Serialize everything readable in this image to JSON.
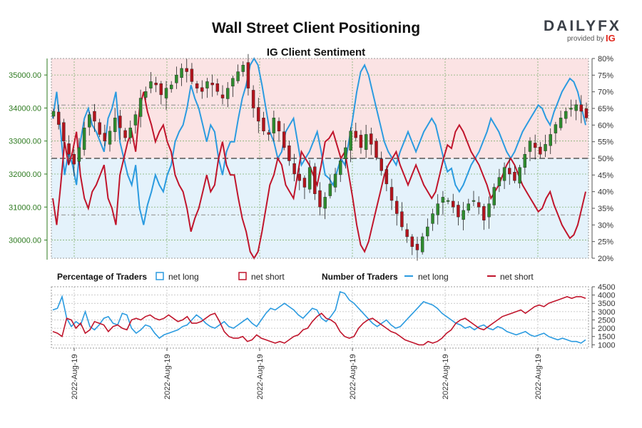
{
  "title": "Wall Street Client Positioning",
  "subtitle": "IG Client Sentiment",
  "brand": {
    "name": "DAILYFX",
    "tagline": "provided by",
    "partner": "IG"
  },
  "colors": {
    "long": "#2b9be0",
    "short": "#c0152c",
    "up_candle": "#2e8b2e",
    "down_candle": "#b3141d",
    "long_zone": "#e4f2fb",
    "short_zone": "#fbe3e4",
    "left_axis": "#2d7a1f"
  },
  "legend": {
    "pct_heading": "Percentage of Traders",
    "num_heading": "Number of Traders",
    "net_long": "net long",
    "net_short": "net short"
  },
  "chart_data": [
    {
      "type": "candlestick",
      "title": "Wall Street Client Positioning",
      "subtitle": "IG Client Sentiment",
      "y_left_ticks": [
        "30000.00",
        "31000.00",
        "32000.00",
        "33000.00",
        "34000.00",
        "35000.00"
      ],
      "y_left_range": [
        29450,
        35500
      ],
      "y_right_ticks": [
        "20%",
        "25%",
        "30%",
        "35%",
        "40%",
        "45%",
        "50%",
        "55%",
        "60%",
        "65%",
        "70%",
        "75%",
        "80%"
      ],
      "y_right_range": [
        20,
        80
      ],
      "reference_levels_pct": [
        33,
        50,
        66
      ],
      "series": [
        {
          "name": "net long",
          "values": [
            62,
            70,
            58,
            45,
            52,
            48,
            42,
            55,
            62,
            65,
            60,
            58,
            55,
            52,
            62,
            65,
            70,
            55,
            50,
            45,
            42,
            48,
            35,
            30,
            36,
            40,
            45,
            42,
            40,
            45,
            48,
            55,
            58,
            60,
            65,
            72,
            68,
            65,
            60,
            55,
            60,
            58,
            50,
            45,
            52,
            55,
            55,
            62,
            68,
            72,
            78,
            80,
            78,
            72,
            65,
            58,
            55,
            50,
            52,
            58,
            60,
            62,
            55,
            48,
            50,
            52,
            55,
            58,
            52,
            45,
            44,
            42,
            46,
            50,
            48,
            55,
            62,
            70,
            76,
            78,
            75,
            70,
            65,
            60,
            55,
            52,
            50,
            48,
            52,
            55,
            58,
            55,
            52,
            55,
            58,
            60,
            62,
            60,
            55,
            50,
            46,
            47,
            42,
            40,
            42,
            45,
            48,
            50,
            52,
            55,
            58,
            62,
            60,
            58,
            55,
            52,
            50,
            52,
            55,
            58,
            60,
            62,
            64,
            66,
            65,
            62,
            60,
            64,
            67,
            70,
            72,
            74,
            73,
            70,
            65,
            60
          ]
        },
        {
          "name": "net short",
          "values": [
            38,
            30,
            42,
            55,
            48,
            52,
            58,
            45,
            38,
            35,
            40,
            42,
            45,
            48,
            38,
            35,
            30,
            45,
            50,
            55,
            58,
            52,
            65,
            70,
            64,
            60,
            55,
            58,
            60,
            55,
            52,
            45,
            42,
            40,
            35,
            28,
            32,
            35,
            40,
            45,
            40,
            42,
            50,
            55,
            48,
            45,
            45,
            38,
            32,
            28,
            22,
            20,
            22,
            28,
            35,
            42,
            45,
            50,
            48,
            42,
            40,
            38,
            45,
            52,
            50,
            48,
            45,
            42,
            48,
            55,
            56,
            58,
            54,
            50,
            52,
            45,
            38,
            30,
            24,
            22,
            25,
            30,
            35,
            40,
            45,
            48,
            50,
            52,
            48,
            45,
            42,
            45,
            48,
            45,
            42,
            40,
            38,
            40,
            45,
            50,
            54,
            53,
            58,
            60,
            58,
            55,
            52,
            50,
            48,
            45,
            42,
            38,
            40,
            42,
            45,
            48,
            50,
            48,
            45,
            42,
            40,
            38,
            36,
            34,
            35,
            38,
            40,
            36,
            33,
            30,
            28,
            26,
            27,
            30,
            35,
            40
          ]
        },
        {
          "name": "price",
          "values": [
            33900,
            33500,
            33000,
            32600,
            32300,
            32800,
            33400,
            33800,
            33600,
            33200,
            33000,
            33300,
            33700,
            33400,
            33100,
            33400,
            33800,
            34300,
            34500,
            34800,
            34700,
            34400,
            34600,
            34700,
            35000,
            35200,
            35100,
            34800,
            34600,
            34500,
            34800,
            34700,
            34500,
            34300,
            34600,
            34900,
            35100,
            35300,
            34600,
            34000,
            33600,
            33300,
            33200,
            33700,
            33300,
            32800,
            32400,
            32000,
            31800,
            31600,
            32200,
            31400,
            31000,
            31300,
            31700,
            32000,
            32400,
            32800,
            33300,
            33100,
            32800,
            33200,
            32900,
            32500,
            32100,
            31700,
            31200,
            30800,
            30400,
            30100,
            29800,
            29700,
            30100,
            30400,
            30800,
            31100,
            31300,
            31200,
            31000,
            30700,
            30900,
            31100,
            31200,
            31000,
            30600,
            31100,
            31600,
            31900,
            32200,
            32000,
            31800,
            32200,
            32600,
            33000,
            32800,
            32600,
            32900,
            33200,
            33500,
            33700,
            33900,
            34000,
            34100,
            33900,
            33700
          ]
        }
      ]
    },
    {
      "type": "line",
      "y_ticks": [
        "1000",
        "1500",
        "2000",
        "2500",
        "3000",
        "3500",
        "4000",
        "4500"
      ],
      "y_range": [
        800,
        4500
      ],
      "x_tick_labels": [
        "2022-Aug-19",
        "2022-Aug-19",
        "2022-Aug-19",
        "2022-Aug-19",
        "2022-Aug-19",
        "2022-Aug-19"
      ],
      "series": [
        {
          "name": "net long",
          "values": [
            3100,
            3200,
            3900,
            2600,
            2100,
            2400,
            2200,
            3000,
            2100,
            1900,
            2200,
            2600,
            2700,
            2300,
            2200,
            2900,
            2800,
            2000,
            1700,
            1900,
            2200,
            2100,
            1700,
            1400,
            1600,
            1700,
            1800,
            1900,
            2100,
            2200,
            2500,
            2800,
            2600,
            2300,
            2100,
            2000,
            2200,
            2400,
            2100,
            2000,
            2200,
            2400,
            2600,
            2300,
            2100,
            2500,
            2900,
            3200,
            3100,
            3300,
            3500,
            3300,
            3100,
            2800,
            2600,
            2900,
            3200,
            3100,
            2600,
            2400,
            2700,
            3100,
            4200,
            4100,
            3700,
            3500,
            3200,
            2900,
            2600,
            2300,
            2100,
            2300,
            2500,
            2200,
            2000,
            2100,
            2400,
            2700,
            3000,
            3300,
            3600,
            3500,
            3400,
            3200,
            2900,
            2700,
            2500,
            2300,
            2200,
            2000,
            2100,
            1900,
            2100,
            2200,
            2000,
            1900,
            2100,
            2000,
            1800,
            1700,
            1600,
            1700,
            1800,
            1600,
            1500,
            1600,
            1700,
            1500,
            1400,
            1300,
            1400,
            1300,
            1200,
            1200,
            1100,
            1300
          ]
        },
        {
          "name": "net short",
          "values": [
            1800,
            1700,
            1500,
            2600,
            2500,
            2000,
            2300,
            1700,
            1900,
            2400,
            2300,
            2200,
            1800,
            2100,
            2200,
            2000,
            1900,
            2500,
            2600,
            2500,
            2700,
            2800,
            2600,
            2500,
            2600,
            2800,
            2600,
            2400,
            2500,
            2700,
            2300,
            2300,
            2400,
            2600,
            2800,
            2900,
            2400,
            1800,
            1500,
            1400,
            1400,
            1500,
            1200,
            1300,
            1600,
            1400,
            1300,
            1200,
            1100,
            1200,
            1100,
            1300,
            1500,
            1600,
            1900,
            2000,
            2400,
            2700,
            2900,
            2600,
            2500,
            2300,
            1800,
            1500,
            1400,
            1500,
            2000,
            2300,
            2500,
            2600,
            2400,
            2200,
            2000,
            1800,
            1700,
            1500,
            1300,
            1200,
            1100,
            1000,
            1000,
            1200,
            1100,
            1200,
            1400,
            1700,
            1900,
            2300,
            2500,
            2600,
            2400,
            2200,
            2000,
            1900,
            2100,
            2300,
            2500,
            2700,
            2800,
            2900,
            3000,
            3100,
            2900,
            3100,
            3300,
            3400,
            3300,
            3500,
            3600,
            3700,
            3800,
            3900,
            3800,
            3900,
            3900,
            3800
          ]
        }
      ]
    }
  ]
}
